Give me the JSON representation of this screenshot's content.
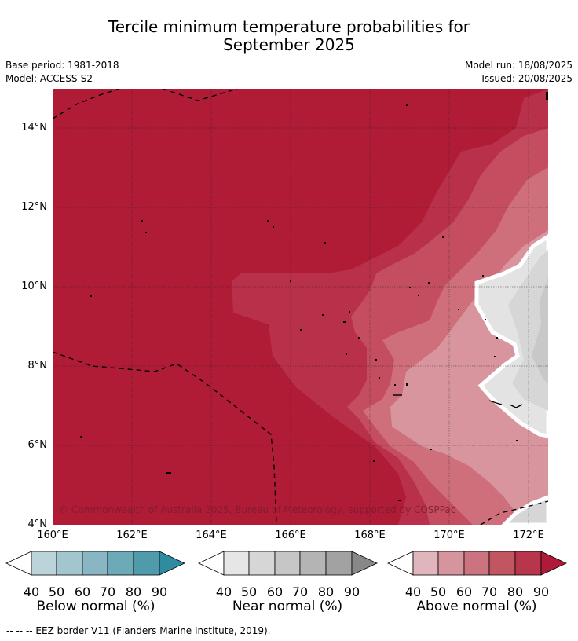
{
  "title": {
    "line1": "Tercile minimum temperature probabilities for",
    "line2": "September 2025"
  },
  "meta": {
    "base_period": "Base period: 1981-2018",
    "model": "Model: ACCESS-S2",
    "model_run": "Model run: 18/08/2025",
    "issued": "Issued: 20/08/2025"
  },
  "map": {
    "y_labels": [
      "14°N",
      "12°N",
      "10°N",
      "8°N",
      "6°N",
      "4°N"
    ],
    "x_labels": [
      "160°E",
      "162°E",
      "164°E",
      "166°E",
      "168°E",
      "170°E",
      "172°E"
    ],
    "copyright": "© Commonwealth of Australia 2025, Bureau of Meteorology, supported by COSPPac",
    "colors": {
      "above_90": "#b01b36",
      "above_80": "#b9304a",
      "above_70": "#c44d60",
      "above_60": "#ce6f7b",
      "above_50": "#d9959d",
      "near_40": "#e3e3e3",
      "near_50": "#d6d6d6",
      "near_60": "#c8c8c8"
    }
  },
  "colorbars": {
    "below": {
      "title": "Below normal (%)",
      "ticks": [
        "40",
        "50",
        "60",
        "70",
        "80",
        "90"
      ],
      "colors": [
        "#bdd3da",
        "#a3c5cd",
        "#88b6c2",
        "#6daab8",
        "#4f9aab",
        "#2f8ba0"
      ]
    },
    "near": {
      "title": "Near normal (%)",
      "ticks": [
        "40",
        "50",
        "60",
        "70",
        "80",
        "90"
      ],
      "colors": [
        "#e6e6e6",
        "#d6d6d6",
        "#c6c6c6",
        "#b4b4b4",
        "#a2a2a2",
        "#888888"
      ]
    },
    "above": {
      "title": "Above normal (%)",
      "ticks": [
        "40",
        "50",
        "60",
        "70",
        "80",
        "90"
      ],
      "colors": [
        "#e0b5bb",
        "#d6949c",
        "#cb737e",
        "#c15662",
        "#b8364b",
        "#ae1a38"
      ]
    }
  },
  "legend": {
    "eez": "--  --  -- EEZ border V11 (Flanders Marine Institute, 2019)."
  }
}
